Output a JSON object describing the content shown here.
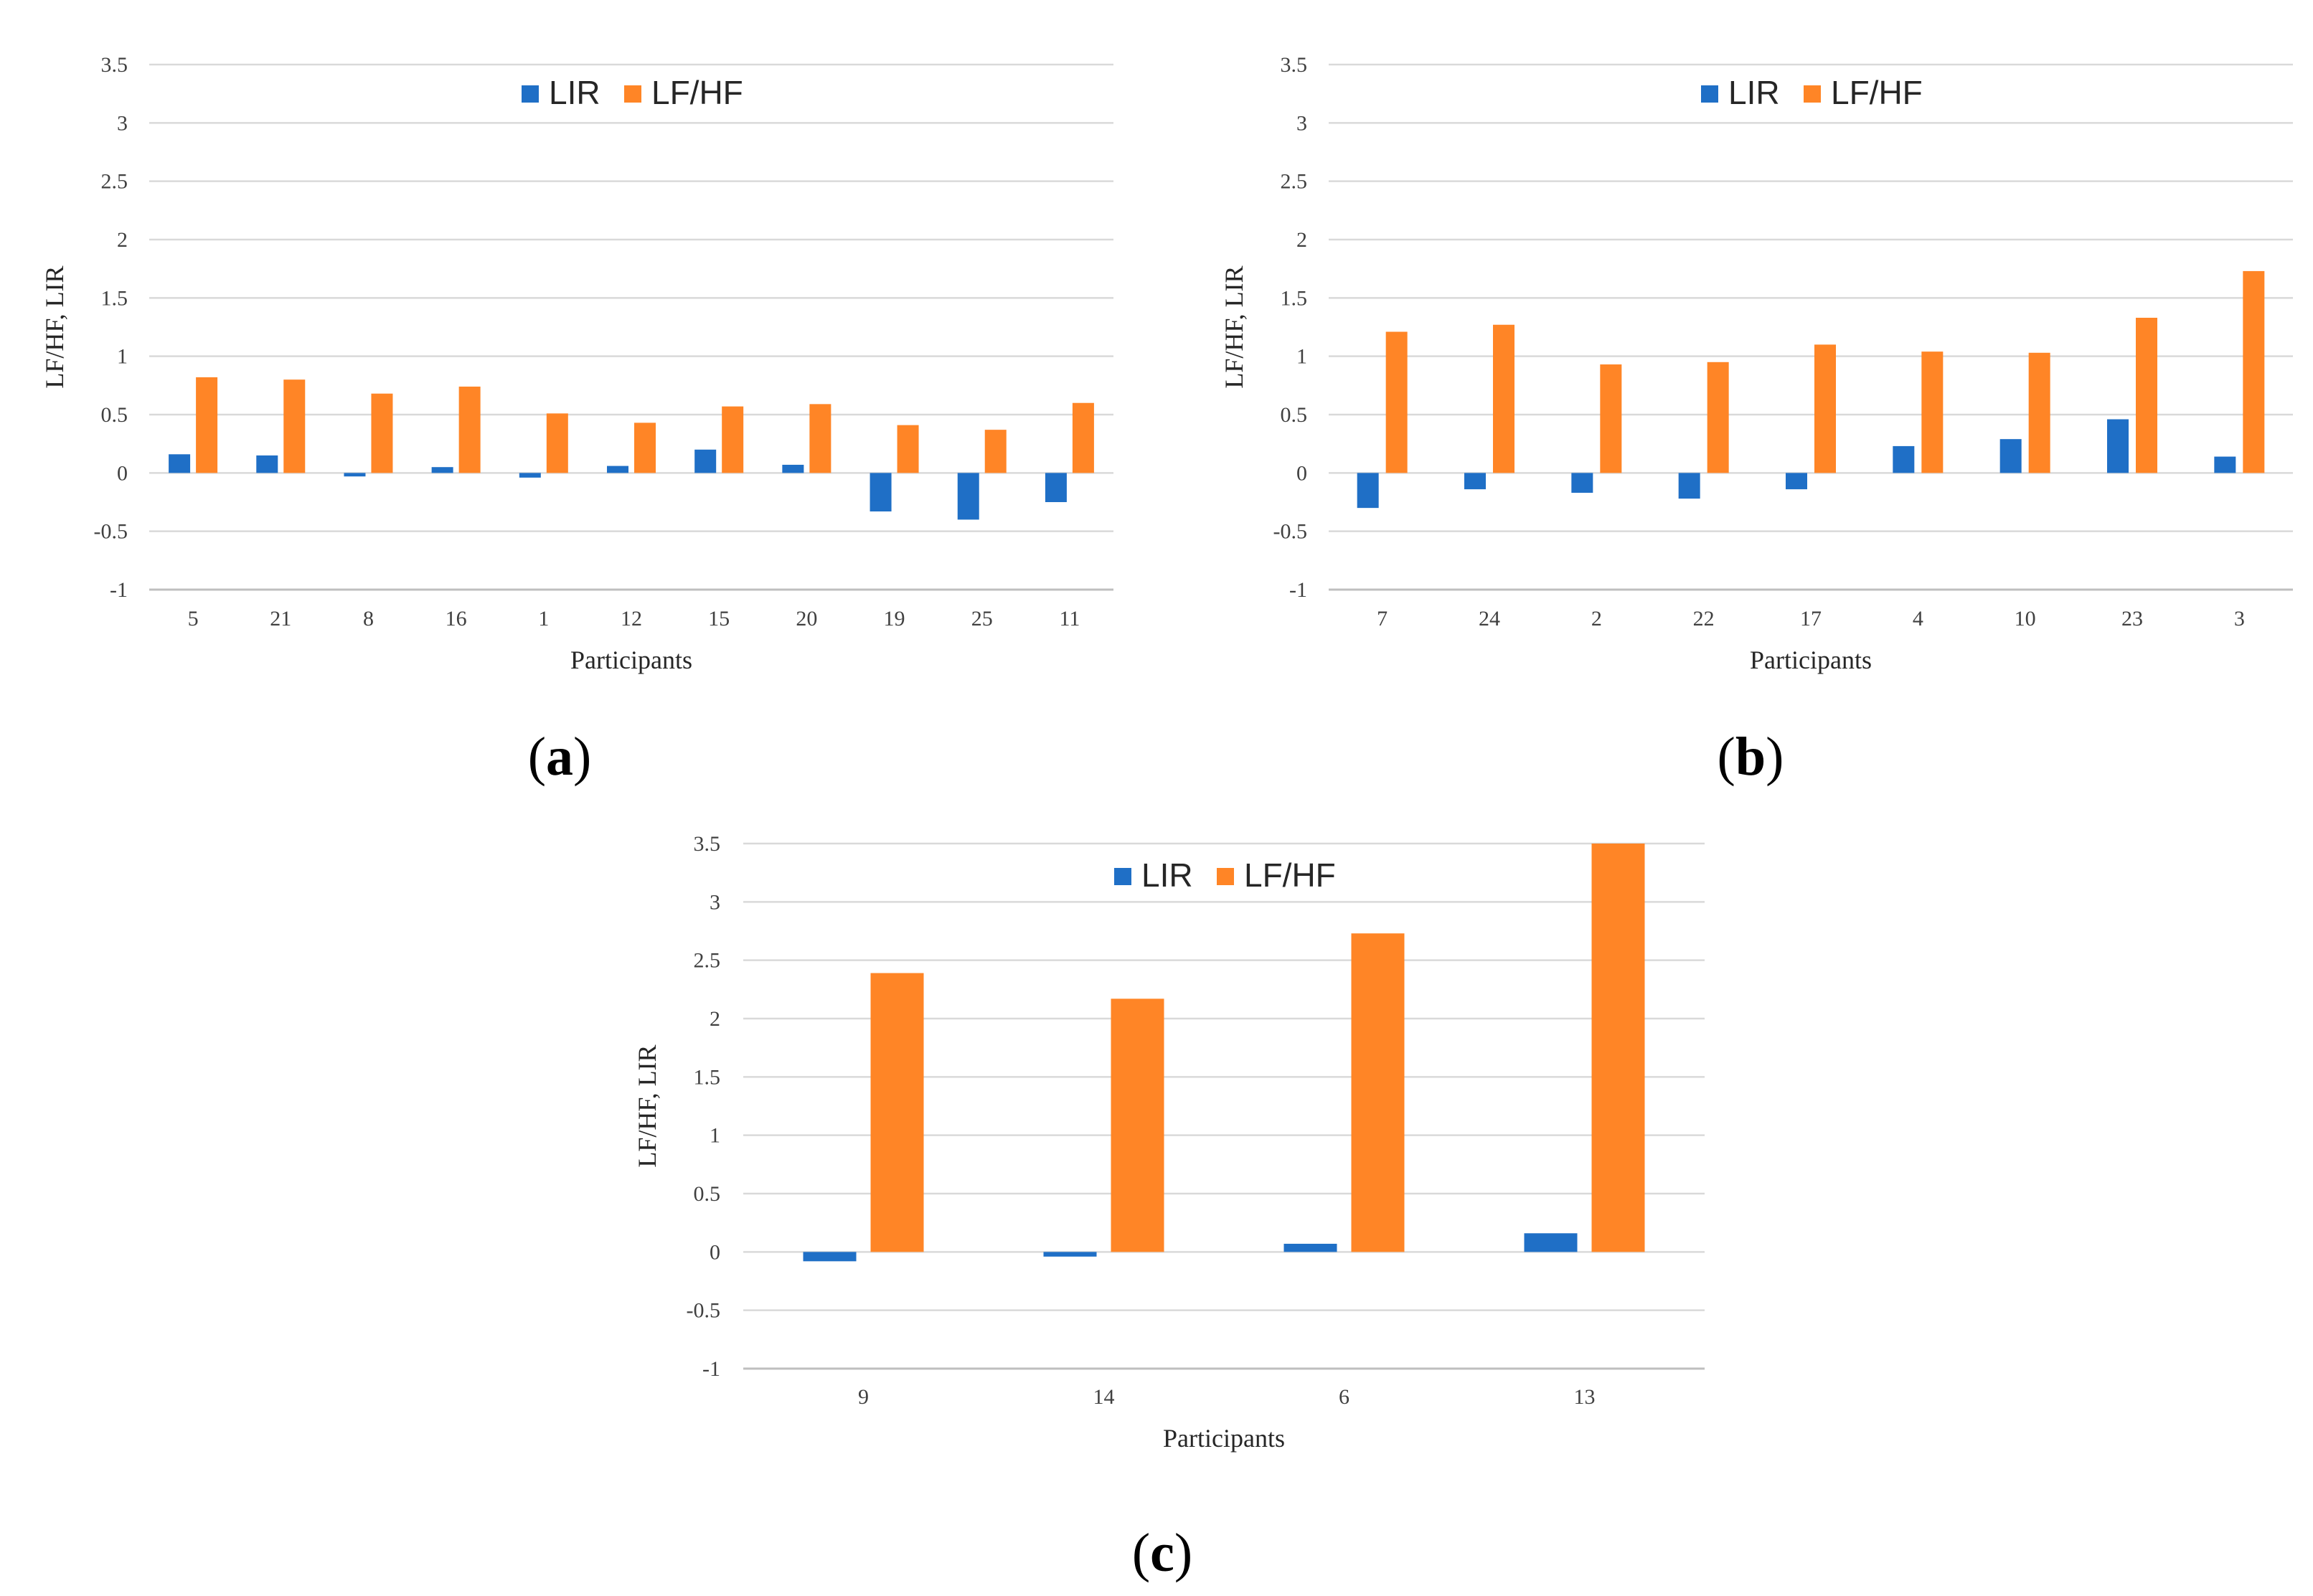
{
  "colors": {
    "LIR": "#1F6FC6",
    "LF/HF": "#FF8526",
    "grid": "#D9D9D9",
    "axis": "#BFBFBF"
  },
  "chart_data": [
    {
      "id": "a",
      "panel_label": "a",
      "type": "bar",
      "xlabel": "Participants",
      "ylabel": "LF/HF, LIR",
      "ylim": [
        -1,
        3.5
      ],
      "yticks": [
        "3.5",
        "3",
        "2.5",
        "2",
        "1.5",
        "1",
        "0.5",
        "0",
        "-0.5",
        "-1"
      ],
      "legend_position": "top-center",
      "categories": [
        "5",
        "21",
        "8",
        "16",
        "1",
        "12",
        "15",
        "20",
        "19",
        "25",
        "11"
      ],
      "series": [
        {
          "name": "LIR",
          "values": [
            0.16,
            0.15,
            -0.03,
            0.05,
            -0.04,
            0.06,
            0.2,
            0.07,
            -0.33,
            -0.4,
            -0.25
          ]
        },
        {
          "name": "LF/HF",
          "values": [
            0.82,
            0.8,
            0.68,
            0.74,
            0.51,
            0.43,
            0.57,
            0.59,
            0.41,
            0.37,
            0.6
          ]
        }
      ]
    },
    {
      "id": "b",
      "panel_label": "b",
      "type": "bar",
      "xlabel": "Participants",
      "ylabel": "LF/HF, LIR",
      "ylim": [
        -1,
        3.5
      ],
      "yticks": [
        "3.5",
        "3",
        "2.5",
        "2",
        "1.5",
        "1",
        "0.5",
        "0",
        "-0.5",
        "-1"
      ],
      "legend_position": "top-center",
      "categories": [
        "7",
        "24",
        "2",
        "22",
        "17",
        "4",
        "10",
        "23",
        "3"
      ],
      "series": [
        {
          "name": "LIR",
          "values": [
            -0.3,
            -0.14,
            -0.17,
            -0.22,
            -0.14,
            0.23,
            0.29,
            0.46,
            0.14
          ]
        },
        {
          "name": "LF/HF",
          "values": [
            1.21,
            1.27,
            0.93,
            0.95,
            1.1,
            1.04,
            1.03,
            1.33,
            1.73
          ]
        }
      ]
    },
    {
      "id": "c",
      "panel_label": "c",
      "type": "bar",
      "xlabel": "Participants",
      "ylabel": "LF/HF, LIR",
      "ylim": [
        -1,
        3.5
      ],
      "yticks": [
        "3.5",
        "3",
        "2.5",
        "2",
        "1.5",
        "1",
        "0.5",
        "0",
        "-0.5",
        "-1"
      ],
      "legend_position": "top-center",
      "categories": [
        "9",
        "14",
        "6",
        "13"
      ],
      "series": [
        {
          "name": "LIR",
          "values": [
            -0.08,
            -0.04,
            0.07,
            0.16
          ]
        },
        {
          "name": "LF/HF",
          "values": [
            2.39,
            2.17,
            2.73,
            3.5
          ]
        }
      ]
    }
  ]
}
